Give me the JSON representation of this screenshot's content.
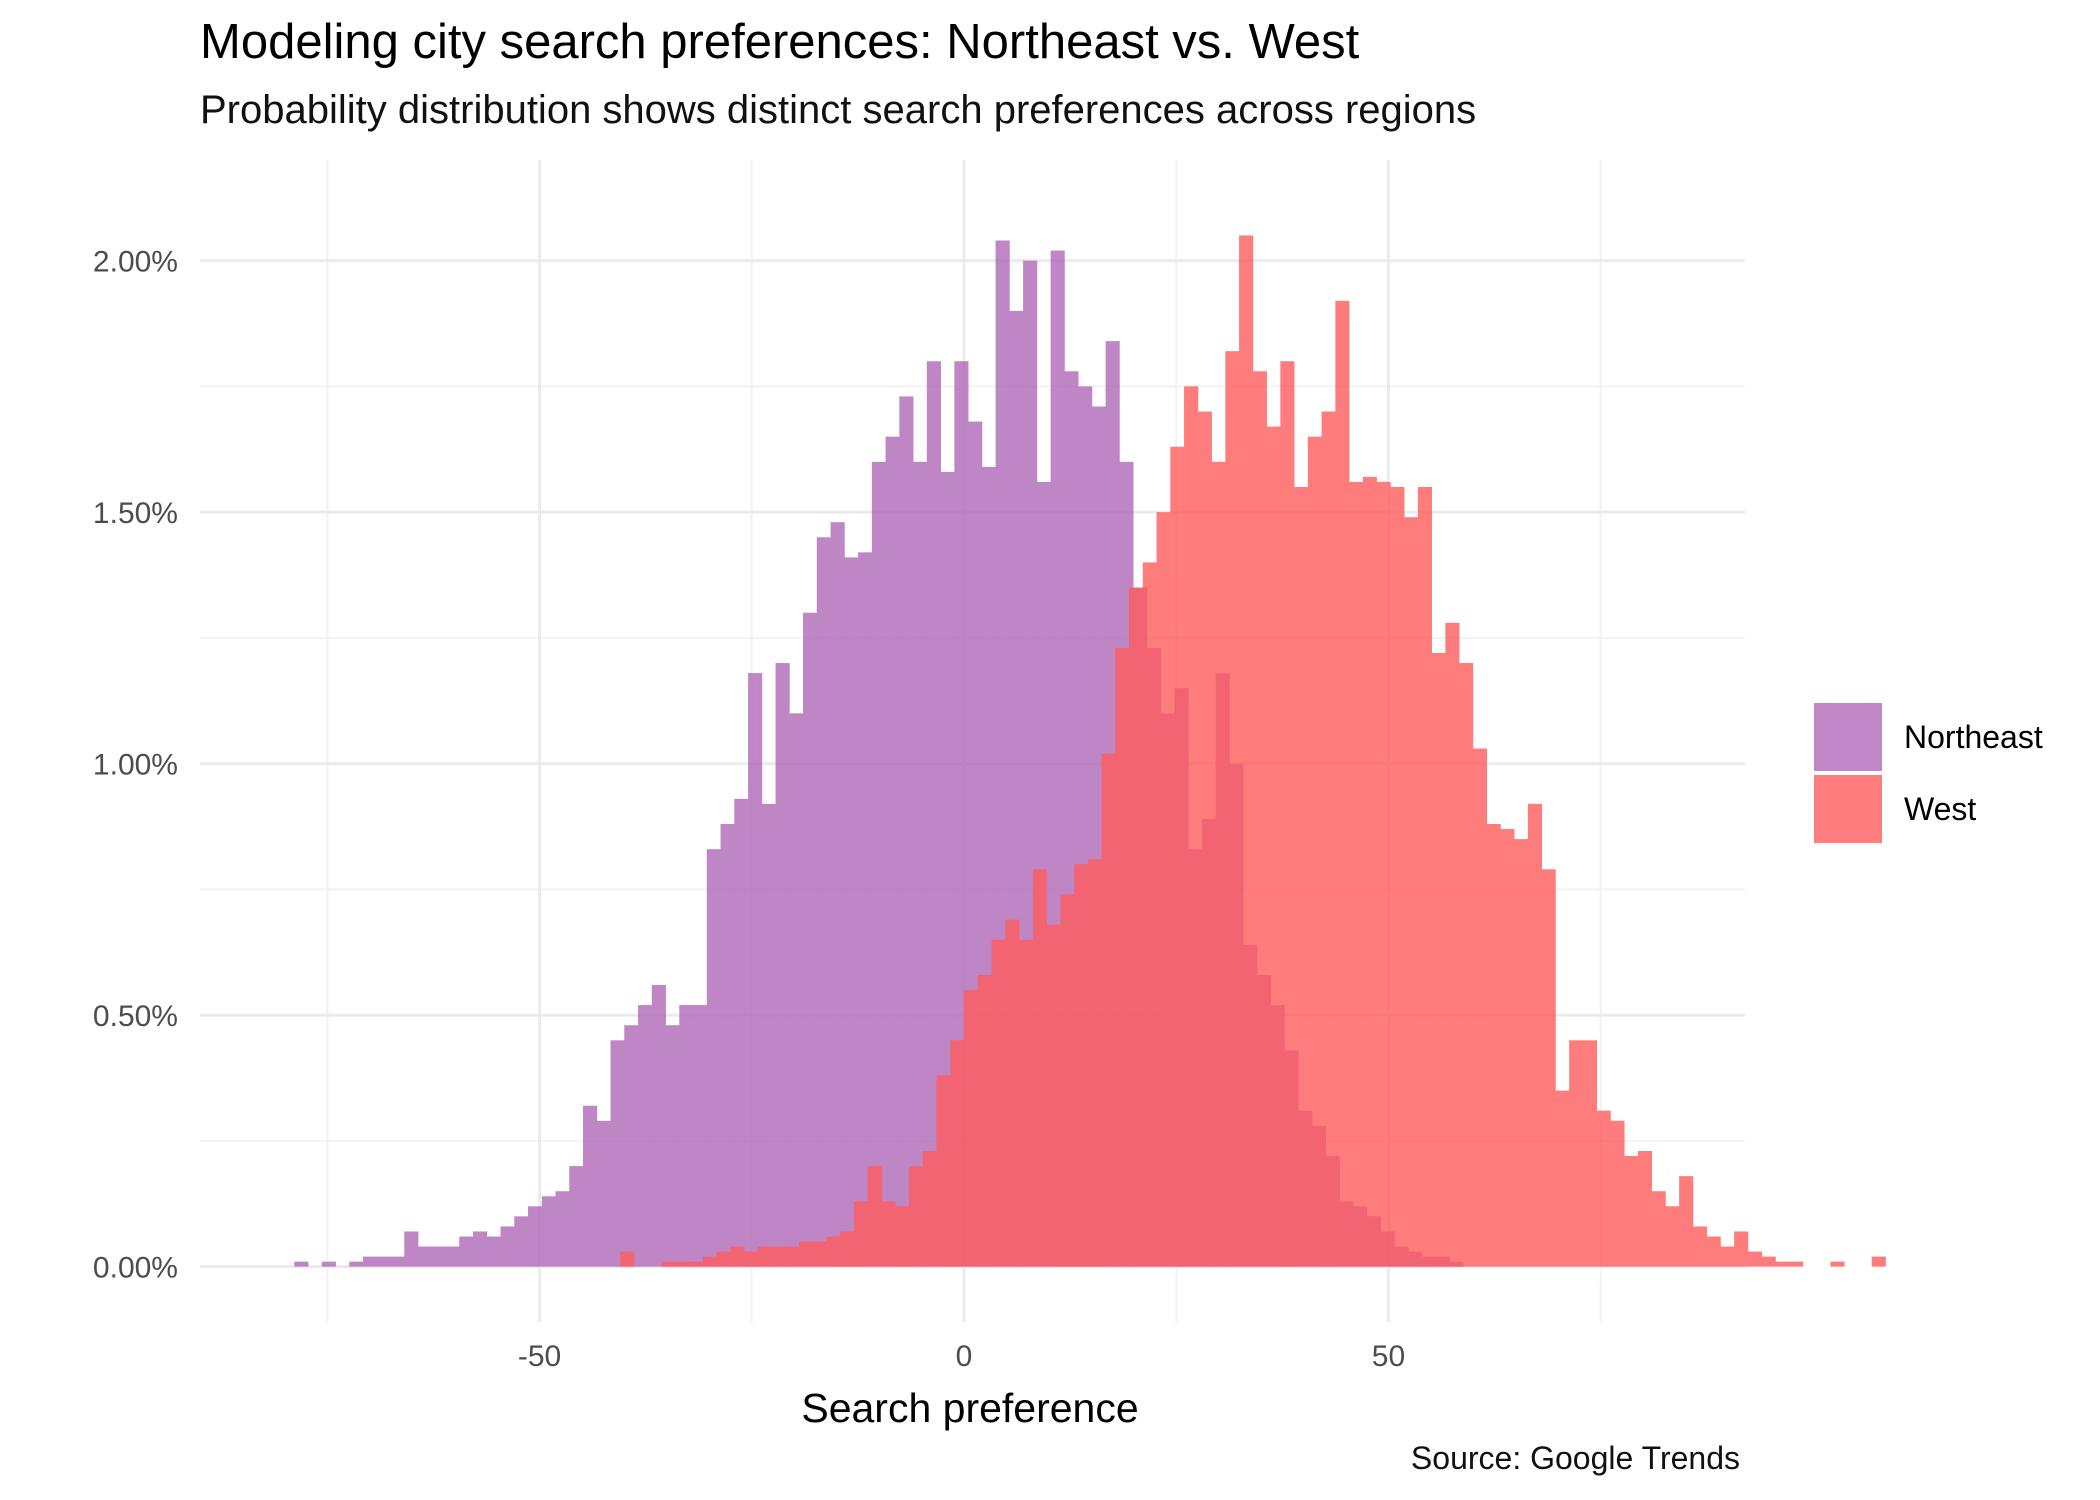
{
  "chart_data": {
    "type": "histogram",
    "title": "Modeling city search preferences: Northeast vs. West",
    "subtitle": "Probability distribution shows distinct search preferences across regions",
    "xlabel": "Search preference",
    "ylabel": "",
    "caption": "Source: Google Trends",
    "xlim": [
      -90,
      92
    ],
    "ylim": [
      -0.11,
      2.2
    ],
    "x_ticks": [
      -50,
      0,
      50
    ],
    "x_tick_labels": [
      "-50",
      "0",
      "50"
    ],
    "y_ticks": [
      0,
      0.5,
      1.0,
      1.5,
      2.0
    ],
    "y_tick_labels": [
      "0.00%",
      "0.50%",
      "1.00%",
      "1.50%",
      "2.00%"
    ],
    "grid": true,
    "legend_position": "right",
    "bin_width": 1.62,
    "series": [
      {
        "name": "Northeast",
        "color": "#b068b8",
        "bin_start": -78.9,
        "values": [
          0.01,
          0.0,
          0.01,
          0.0,
          0.01,
          0.02,
          0.02,
          0.02,
          0.07,
          0.04,
          0.04,
          0.04,
          0.06,
          0.07,
          0.06,
          0.08,
          0.1,
          0.12,
          0.14,
          0.15,
          0.2,
          0.32,
          0.29,
          0.45,
          0.48,
          0.52,
          0.56,
          0.48,
          0.52,
          0.52,
          0.83,
          0.88,
          0.93,
          1.18,
          0.92,
          1.2,
          1.1,
          1.3,
          1.45,
          1.48,
          1.41,
          1.42,
          1.6,
          1.65,
          1.73,
          1.6,
          1.8,
          1.58,
          1.8,
          1.68,
          1.59,
          2.04,
          1.9,
          2.0,
          1.56,
          2.02,
          1.78,
          1.75,
          1.71,
          1.84,
          1.6,
          1.35,
          1.23,
          1.1,
          1.15,
          0.83,
          0.89,
          1.18,
          1.0,
          0.64,
          0.58,
          0.52,
          0.43,
          0.31,
          0.28,
          0.22,
          0.13,
          0.12,
          0.1,
          0.07,
          0.04,
          0.03,
          0.02,
          0.02,
          0.01
        ]
      },
      {
        "name": "West",
        "color": "#ff5c5c",
        "bin_start": -40.5,
        "values": [
          0.03,
          0.0,
          0.0,
          0.01,
          0.01,
          0.01,
          0.02,
          0.03,
          0.04,
          0.03,
          0.04,
          0.04,
          0.04,
          0.05,
          0.05,
          0.06,
          0.07,
          0.13,
          0.2,
          0.13,
          0.12,
          0.2,
          0.23,
          0.38,
          0.45,
          0.55,
          0.58,
          0.65,
          0.69,
          0.65,
          0.79,
          0.68,
          0.74,
          0.8,
          0.81,
          1.02,
          1.23,
          1.35,
          1.4,
          1.5,
          1.63,
          1.75,
          1.7,
          1.6,
          1.82,
          2.05,
          1.78,
          1.67,
          1.8,
          1.55,
          1.65,
          1.7,
          1.92,
          1.56,
          1.57,
          1.56,
          1.55,
          1.49,
          1.55,
          1.22,
          1.28,
          1.2,
          1.03,
          0.88,
          0.87,
          0.85,
          0.92,
          0.79,
          0.35,
          0.45,
          0.45,
          0.31,
          0.29,
          0.22,
          0.23,
          0.15,
          0.12,
          0.18,
          0.08,
          0.06,
          0.04,
          0.07,
          0.03,
          0.02,
          0.01,
          0.01,
          0.0,
          0.0,
          0.01,
          0.0,
          0.0,
          0.02
        ]
      }
    ]
  }
}
